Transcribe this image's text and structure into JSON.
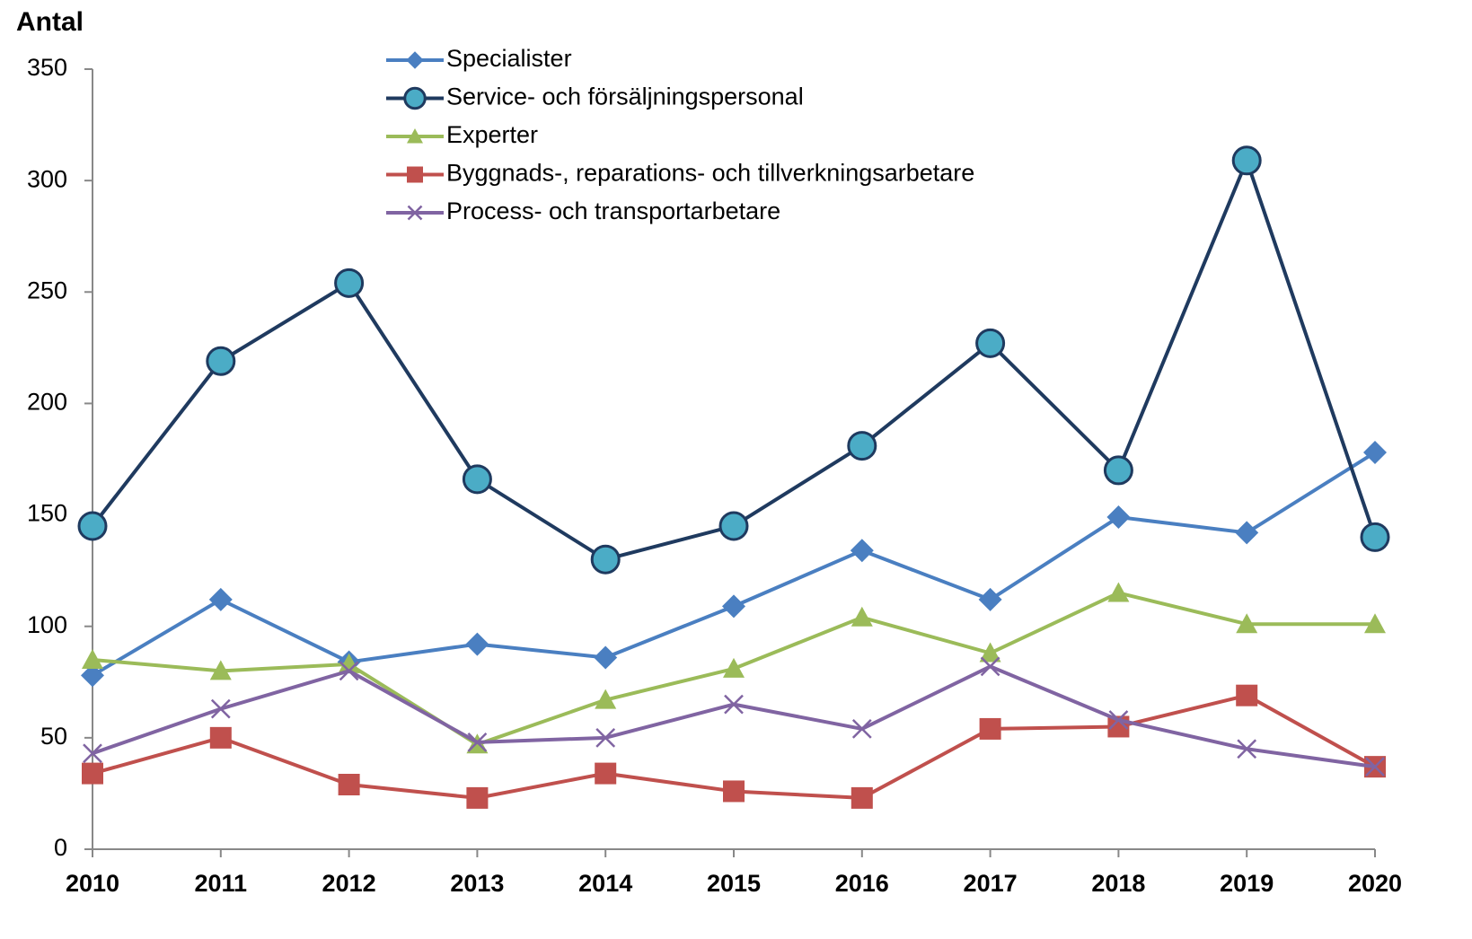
{
  "chart_data": {
    "type": "line",
    "y_label": "Antal",
    "categories": [
      "2010",
      "2011",
      "2012",
      "2013",
      "2014",
      "2015",
      "2016",
      "2017",
      "2018",
      "2019",
      "2020"
    ],
    "series": [
      {
        "name": "Specialister",
        "color": "#4a7fc1",
        "marker": "diamond",
        "values": [
          78,
          112,
          84,
          92,
          86,
          109,
          134,
          112,
          149,
          142,
          178
        ]
      },
      {
        "name": "Service- och försäljningspersonal",
        "color": "#1f3a5f",
        "marker": "circle",
        "marker_color": "#4bacc6",
        "values": [
          145,
          219,
          254,
          166,
          130,
          145,
          181,
          227,
          170,
          309,
          140
        ]
      },
      {
        "name": "Experter",
        "color": "#9bbb59",
        "marker": "triangle",
        "values": [
          85,
          80,
          83,
          47,
          67,
          81,
          104,
          88,
          115,
          101,
          101
        ]
      },
      {
        "name": "Byggnads-, reparations- och tillverkningsarbetare",
        "color": "#c0504d",
        "marker": "square",
        "values": [
          34,
          50,
          29,
          23,
          34,
          26,
          23,
          54,
          55,
          69,
          37
        ]
      },
      {
        "name": "Process- och transportarbetare",
        "color": "#8064a2",
        "marker": "x",
        "values": [
          43,
          63,
          80,
          48,
          50,
          65,
          54,
          82,
          58,
          45,
          37
        ]
      }
    ],
    "ylim": [
      0,
      350
    ],
    "yticks": [
      0,
      50,
      100,
      150,
      200,
      250,
      300,
      350
    ],
    "grid": false,
    "legend": "top"
  }
}
